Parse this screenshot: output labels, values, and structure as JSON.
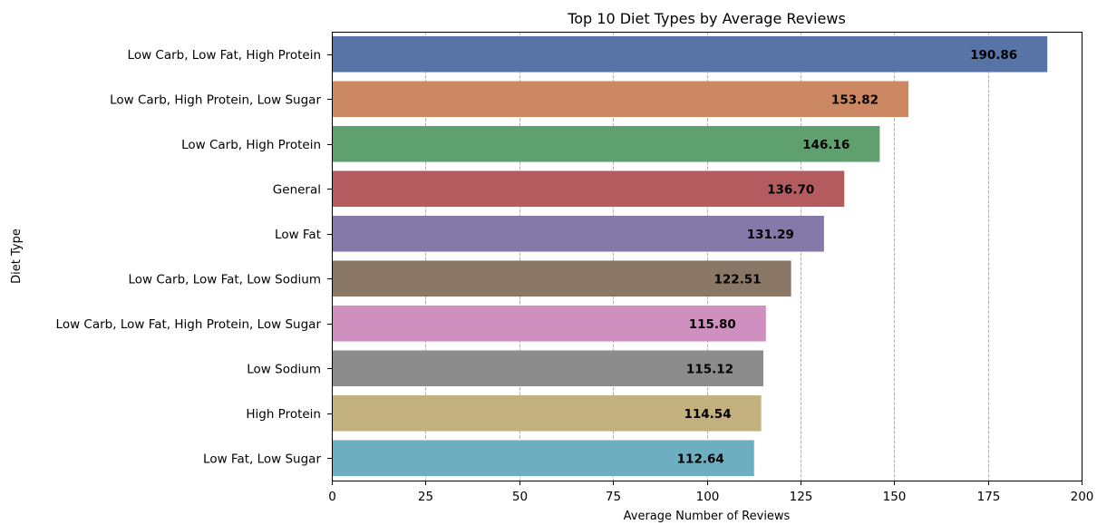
{
  "chart_data": {
    "type": "bar",
    "orientation": "horizontal",
    "title": "Top 10 Diet Types by Average Reviews",
    "xlabel": "Average Number of Reviews",
    "ylabel": "Diet Type",
    "xlim": [
      0,
      200
    ],
    "xticks": [
      0,
      25,
      50,
      75,
      100,
      125,
      150,
      175,
      200
    ],
    "grid": "vertical dashed",
    "categories": [
      "Low Carb, Low Fat, High Protein",
      "Low Carb, High Protein, Low Sugar",
      "Low Carb, High Protein",
      "General",
      "Low Fat",
      "Low Carb, Low Fat, Low Sodium",
      "Low Carb, Low Fat, High Protein, Low Sugar",
      "Low Sodium",
      "High Protein",
      "Low Fat, Low Sugar"
    ],
    "values": [
      190.86,
      153.82,
      146.16,
      136.7,
      131.29,
      122.51,
      115.8,
      115.12,
      114.54,
      112.64
    ],
    "value_labels": [
      "190.86",
      "153.82",
      "146.16",
      "136.70",
      "131.29",
      "122.51",
      "115.80",
      "115.12",
      "114.54",
      "112.64"
    ],
    "colors": [
      "#5874a6",
      "#cc8863",
      "#5fa06f",
      "#b45b60",
      "#8579aa",
      "#8b7765",
      "#cf90bf",
      "#8c8c8c",
      "#c2b07e",
      "#6eaec1"
    ]
  }
}
